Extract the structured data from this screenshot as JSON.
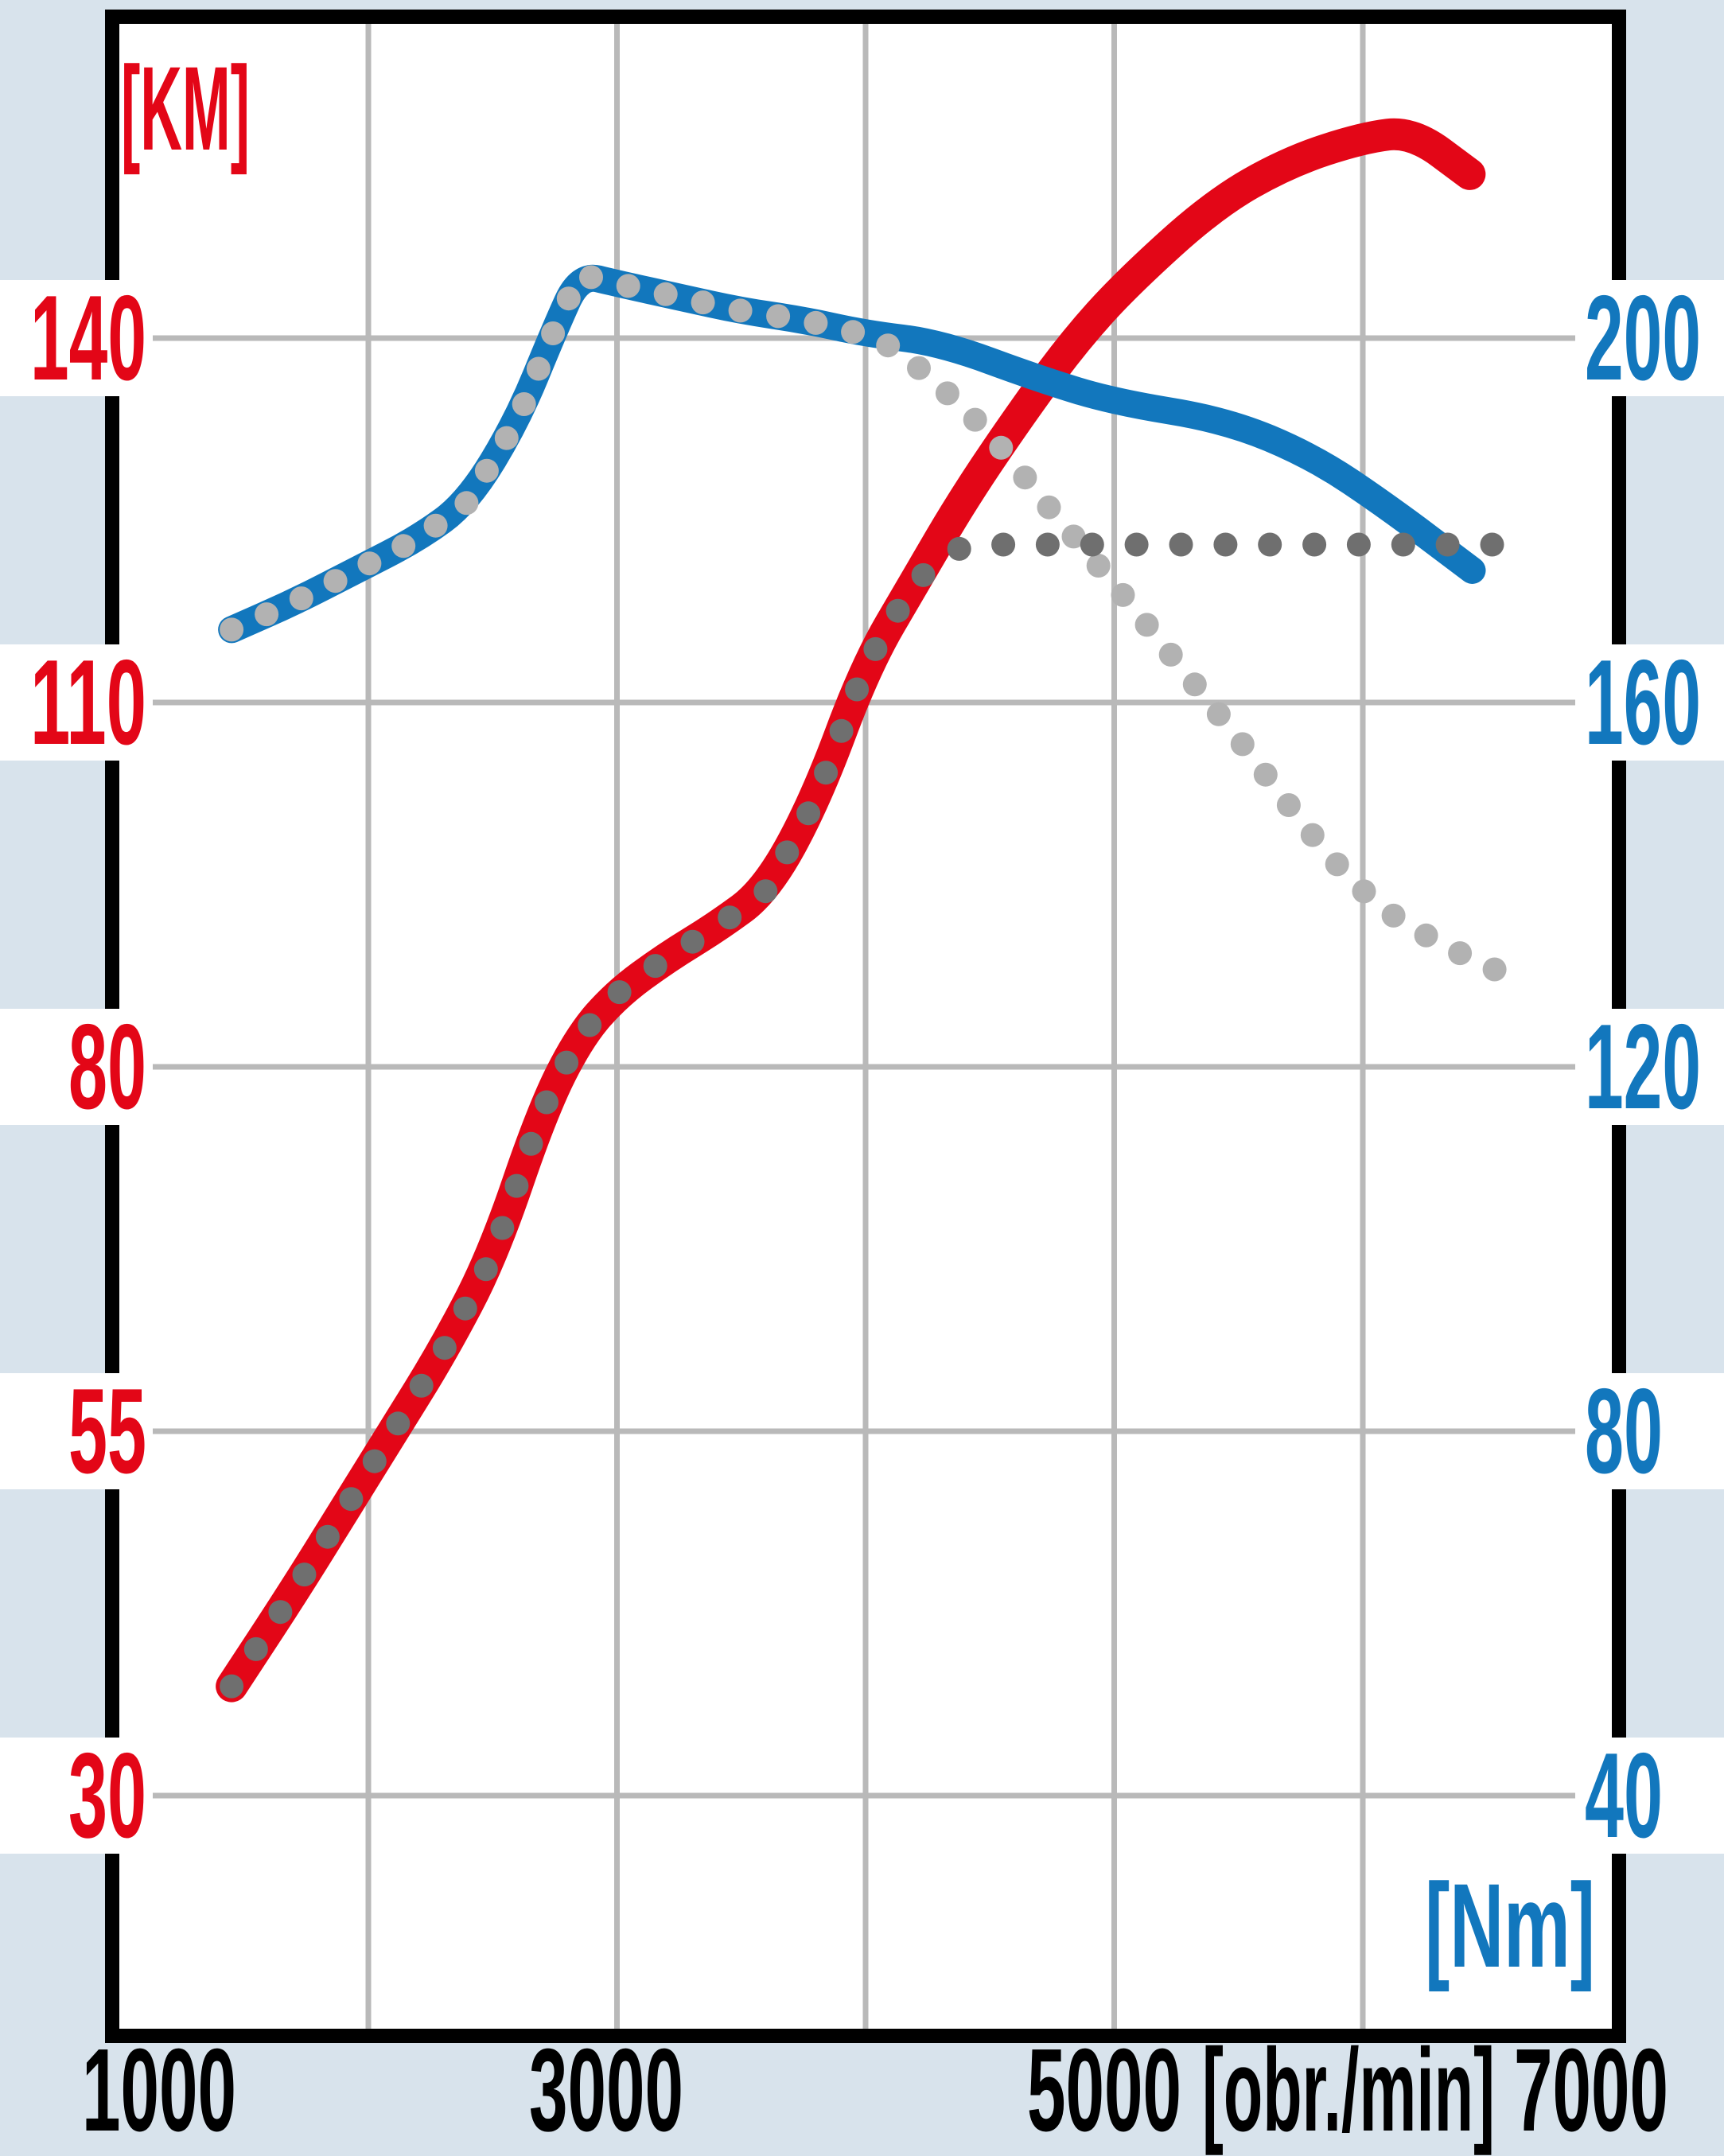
{
  "units": {
    "left_axis_unit": "[KM]",
    "right_axis_unit": "[Nm]",
    "x_axis_unit": "[obr./min]"
  },
  "axes": {
    "left": {
      "tick_labels": [
        "140",
        "110",
        "80",
        "55",
        "30"
      ],
      "color": "#e30617"
    },
    "right": {
      "tick_labels": [
        "200",
        "160",
        "120",
        "80",
        "40"
      ],
      "color": "#1277bd"
    },
    "x": {
      "tick_labels": [
        "1000",
        "3000",
        "5000",
        "7000"
      ],
      "tick_values": [
        1000,
        3000,
        5000,
        7000
      ],
      "color": "#000000"
    }
  },
  "colors": {
    "background": "#d8e3ec",
    "plot_background": "#ffffff",
    "band_white": "#ffffff",
    "border_black": "#000000",
    "gridline_gray": "#b9b9b9",
    "power_red": "#e30617",
    "torque_blue": "#1277bd",
    "dotted_dark_gray": "#6f6f6f",
    "dotted_light_gray": "#b2b2b2"
  },
  "chart_data": {
    "type": "line",
    "title": "",
    "xlabel": "[obr./min]",
    "x_range": [
      1000,
      7000
    ],
    "x_gridlines": [
      2000,
      3000,
      4000,
      5000,
      6000
    ],
    "grid": "on",
    "legend_position": "none",
    "y_left": {
      "unit": "KM",
      "ticks": [
        140,
        110,
        80,
        55,
        30
      ]
    },
    "y_right": {
      "unit": "Nm",
      "ticks": [
        200,
        160,
        120,
        80,
        40
      ]
    },
    "series": [
      {
        "id": "power_km_solid_red",
        "axis": "left",
        "style": "solid",
        "color_key": "power_red",
        "line_width": 40,
        "points": [
          [
            1450,
            37.5
          ],
          [
            1700,
            44
          ],
          [
            1900,
            49.5
          ],
          [
            2100,
            55
          ],
          [
            2300,
            60.5
          ],
          [
            2500,
            67
          ],
          [
            2700,
            77
          ],
          [
            2850,
            82.5
          ],
          [
            3000,
            86
          ],
          [
            3200,
            89
          ],
          [
            3400,
            91.5
          ],
          [
            3600,
            94.5
          ],
          [
            3800,
            102
          ],
          [
            4000,
            113
          ],
          [
            4200,
            120
          ],
          [
            4400,
            127
          ],
          [
            4650,
            134.5
          ],
          [
            4850,
            140
          ],
          [
            5050,
            144.5
          ],
          [
            5400,
            151
          ],
          [
            5700,
            154.5
          ],
          [
            6000,
            156.5
          ],
          [
            6200,
            157
          ],
          [
            6430,
            153.5
          ]
        ]
      },
      {
        "id": "torque_nm_solid_blue",
        "axis": "right",
        "style": "solid",
        "color_key": "torque_blue",
        "line_width": 34,
        "points": [
          [
            1450,
            168
          ],
          [
            1700,
            171
          ],
          [
            1950,
            174.5
          ],
          [
            2200,
            178
          ],
          [
            2400,
            182
          ],
          [
            2600,
            191
          ],
          [
            2750,
            201
          ],
          [
            2850,
            207
          ],
          [
            3000,
            206
          ],
          [
            3250,
            204.5
          ],
          [
            3500,
            203
          ],
          [
            3750,
            202
          ],
          [
            4000,
            200.5
          ],
          [
            4300,
            199.5
          ],
          [
            4700,
            195.5
          ],
          [
            5000,
            193
          ],
          [
            5450,
            191
          ],
          [
            5800,
            187
          ],
          [
            6100,
            181.5
          ],
          [
            6440,
            174.5
          ]
        ]
      },
      {
        "id": "power_km_dotted_dark_gray",
        "axis": "left",
        "style": "dotted",
        "color_key": "dotted_dark_gray",
        "dot_radius": 15,
        "dot_step": 56,
        "points": [
          [
            1450,
            37.5
          ],
          [
            1700,
            44
          ],
          [
            1900,
            49.5
          ],
          [
            2100,
            55
          ],
          [
            2300,
            60.5
          ],
          [
            2500,
            67
          ],
          [
            2700,
            77
          ],
          [
            2850,
            82.5
          ],
          [
            3000,
            86
          ],
          [
            3200,
            89
          ],
          [
            3400,
            91.5
          ],
          [
            3600,
            94.5
          ],
          [
            3800,
            102
          ],
          [
            4000,
            113
          ],
          [
            4200,
            120
          ],
          [
            4380,
            122.7
          ],
          [
            4550,
            123
          ],
          [
            6520,
            123
          ]
        ]
      },
      {
        "id": "torque_nm_dotted_light_gray",
        "axis": "right",
        "style": "dotted",
        "color_key": "dotted_light_gray",
        "dot_radius": 15,
        "dot_step": 48,
        "points": [
          [
            1450,
            168
          ],
          [
            1700,
            171
          ],
          [
            1950,
            174.5
          ],
          [
            2200,
            178
          ],
          [
            2400,
            182
          ],
          [
            2600,
            191
          ],
          [
            2750,
            201
          ],
          [
            2850,
            207
          ],
          [
            3000,
            206
          ],
          [
            3250,
            204.5
          ],
          [
            3500,
            203
          ],
          [
            3750,
            202
          ],
          [
            4050,
            200
          ],
          [
            4250,
            196
          ],
          [
            4500,
            189.5
          ],
          [
            4750,
            181
          ],
          [
            5000,
            173
          ],
          [
            5250,
            164.5
          ],
          [
            5500,
            156
          ],
          [
            5750,
            147
          ],
          [
            5950,
            140.5
          ],
          [
            6150,
            136
          ],
          [
            6350,
            133
          ],
          [
            6530,
            130.7
          ]
        ]
      }
    ]
  }
}
